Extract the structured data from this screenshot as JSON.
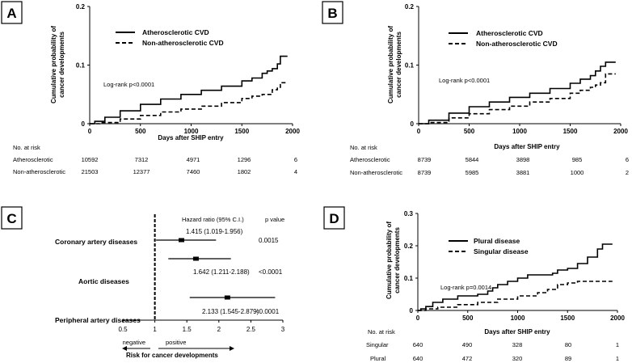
{
  "chart_data": [
    {
      "panel": "A",
      "type": "line",
      "xlabel": "Days after SHIP entry",
      "ylabel": "Cumulative probability of cancer developments",
      "xlim": [
        0,
        2000
      ],
      "ylim": [
        0,
        0.2
      ],
      "xticks": [
        "0",
        "500",
        "1000",
        "1500",
        "2000"
      ],
      "yticks": [
        "0",
        "0.1",
        "0.2"
      ],
      "annotation": "Log-rank p<0.0001",
      "series": [
        {
          "name": "Atherosclerotic CVD",
          "style": "solid",
          "x": [
            0,
            50,
            150,
            300,
            500,
            700,
            900,
            1100,
            1300,
            1500,
            1600,
            1700,
            1750,
            1800,
            1850,
            1880,
            1950
          ],
          "y": [
            0,
            0.004,
            0.011,
            0.022,
            0.033,
            0.042,
            0.05,
            0.057,
            0.064,
            0.073,
            0.078,
            0.086,
            0.09,
            0.094,
            0.102,
            0.115,
            0.115
          ]
        },
        {
          "name": "Non-atherosclerotic CVD",
          "style": "dashed",
          "x": [
            0,
            100,
            300,
            500,
            700,
            900,
            1100,
            1300,
            1500,
            1600,
            1700,
            1800,
            1850,
            1880,
            1950
          ],
          "y": [
            0,
            0.002,
            0.008,
            0.014,
            0.02,
            0.025,
            0.03,
            0.036,
            0.043,
            0.047,
            0.05,
            0.058,
            0.062,
            0.07,
            0.07
          ]
        }
      ],
      "risk_table": {
        "header": "No. at risk",
        "rows": [
          {
            "label": "Atherosclerotic",
            "values": [
              "10592",
              "7312",
              "4971",
              "1296",
              "6"
            ]
          },
          {
            "label": "Non-atherosclerotic",
            "values": [
              "21503",
              "12377",
              "7460",
              "1802",
              "4"
            ]
          }
        ]
      }
    },
    {
      "panel": "B",
      "type": "line",
      "xlabel": "Days after SHIP entry",
      "ylabel": "Cumulative probability of cancer developments",
      "xlim": [
        0,
        2000
      ],
      "ylim": [
        0,
        0.2
      ],
      "xticks": [
        "0",
        "500",
        "1000",
        "1500",
        "2000"
      ],
      "yticks": [
        "0",
        "0.1",
        "0.2"
      ],
      "annotation": "Log-rank p<0.0001",
      "series": [
        {
          "name": "Atherosclerotic CVD",
          "style": "solid",
          "x": [
            0,
            100,
            300,
            500,
            700,
            900,
            1100,
            1300,
            1500,
            1600,
            1700,
            1750,
            1800,
            1850,
            1950
          ],
          "y": [
            0,
            0.006,
            0.018,
            0.029,
            0.037,
            0.045,
            0.052,
            0.06,
            0.069,
            0.076,
            0.082,
            0.09,
            0.098,
            0.105,
            0.105
          ]
        },
        {
          "name": "Non-atherosclerotic CVD",
          "style": "dashed",
          "x": [
            0,
            100,
            300,
            500,
            700,
            900,
            1100,
            1300,
            1500,
            1600,
            1700,
            1750,
            1800,
            1850,
            1950
          ],
          "y": [
            0,
            0.002,
            0.01,
            0.017,
            0.024,
            0.03,
            0.037,
            0.043,
            0.052,
            0.057,
            0.062,
            0.066,
            0.07,
            0.085,
            0.085
          ]
        }
      ],
      "risk_table": {
        "header": "No. at risk",
        "rows": [
          {
            "label": "Atherosclerotic",
            "values": [
              "8739",
              "5844",
              "3898",
              "985",
              "6"
            ]
          },
          {
            "label": "Non-atherosclerotic",
            "values": [
              "8739",
              "5985",
              "3881",
              "1000",
              "2"
            ]
          }
        ]
      }
    },
    {
      "panel": "C",
      "type": "forest",
      "header_hr": "Hazard ratio (95% C.I.)",
      "header_p": "p value",
      "xlim": [
        0.5,
        3
      ],
      "xticks": [
        "0.5",
        "1",
        "1.5",
        "2",
        "2.5",
        "3"
      ],
      "reference": 1,
      "negative_label": "negative",
      "positive_label": "positive",
      "xlabel": "Risk for cancer developments",
      "rows": [
        {
          "label": "Coronary artery diseases",
          "hr": 1.415,
          "lo": 1.019,
          "hi": 1.956,
          "text": "1.415 (1.019-1.956)",
          "p": "0.0015"
        },
        {
          "label": "Aortic diseases",
          "hr": 1.642,
          "lo": 1.211,
          "hi": 2.188,
          "text": "1.642 (1.211-2.188)",
          "p": "<0.0001"
        },
        {
          "label": "Peripheral artery diseases",
          "hr": 2.133,
          "lo": 1.545,
          "hi": 2.879,
          "text": "2.133 (1.545-2.879)",
          "p": "<0.0001"
        }
      ]
    },
    {
      "panel": "D",
      "type": "line",
      "xlabel": "Days after SHIP entry",
      "ylabel": "Cumulative probability of cancer developments",
      "xlim": [
        0,
        2000
      ],
      "ylim": [
        0,
        0.3
      ],
      "xticks": [
        "0",
        "500",
        "1000",
        "1500",
        "2000"
      ],
      "yticks": [
        "0",
        "0.1",
        "0.2",
        "0.3"
      ],
      "annotation": "Log-rank p=0.0014",
      "series": [
        {
          "name": "Plural disease",
          "style": "solid",
          "x": [
            0,
            30,
            80,
            150,
            250,
            400,
            600,
            700,
            750,
            800,
            900,
            1000,
            1100,
            1250,
            1350,
            1400,
            1500,
            1600,
            1700,
            1800,
            1850,
            1950
          ],
          "y": [
            0,
            0.005,
            0.012,
            0.025,
            0.035,
            0.045,
            0.05,
            0.06,
            0.07,
            0.08,
            0.09,
            0.1,
            0.11,
            0.11,
            0.115,
            0.125,
            0.13,
            0.145,
            0.165,
            0.19,
            0.205,
            0.205
          ]
        },
        {
          "name": "Singular disease",
          "style": "dashed",
          "x": [
            0,
            80,
            200,
            400,
            600,
            800,
            1000,
            1200,
            1300,
            1400,
            1500,
            1600,
            1950
          ],
          "y": [
            0,
            0.005,
            0.01,
            0.018,
            0.025,
            0.035,
            0.045,
            0.055,
            0.065,
            0.08,
            0.085,
            0.09,
            0.09
          ]
        }
      ],
      "risk_table": {
        "header": "No. at risk",
        "rows": [
          {
            "label": "Singular",
            "values": [
              "640",
              "490",
              "328",
              "80",
              "1"
            ]
          },
          {
            "label": "Plural",
            "values": [
              "640",
              "472",
              "320",
              "89",
              "1"
            ]
          }
        ]
      }
    }
  ]
}
